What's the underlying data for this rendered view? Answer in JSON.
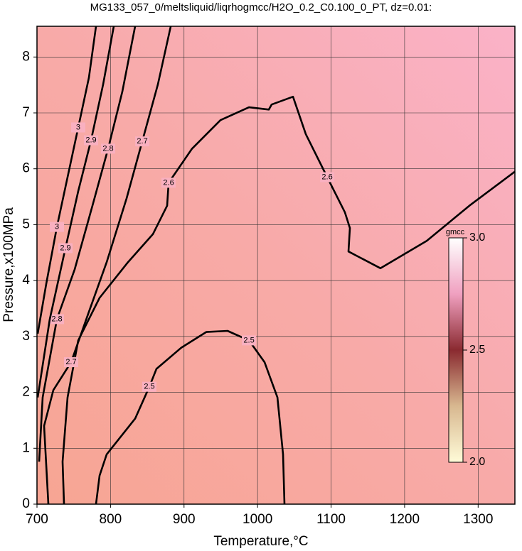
{
  "chart_data": {
    "type": "contour",
    "title": "MG133_057_0/meltsliquid/liqrhogmcc/H2O_0.2_C0.100_0_PT, dz=0.01:",
    "xlabel": "Temperature,°C",
    "ylabel": "Pressure,x100MPa",
    "xlim": [
      700,
      1350
    ],
    "ylim": [
      0,
      8.55
    ],
    "xticks": [
      700,
      800,
      900,
      1000,
      1100,
      1200,
      1300
    ],
    "yticks": [
      0,
      1,
      2,
      3,
      4,
      5,
      6,
      7,
      8
    ],
    "grid": true,
    "color": "#000000",
    "contours": [
      {
        "level": 2.5,
        "x": [
          1036.6,
          1034.7,
          1027,
          1009.5,
          988.3,
          959.2,
          930.2,
          896.4,
          862.5,
          852.8,
          833.5,
          794.8,
          785.1,
          780.3
        ],
        "y": [
          0,
          0.89,
          1.91,
          2.54,
          2.93,
          3.1,
          3.08,
          2.8,
          2.42,
          2.1,
          1.53,
          0.89,
          0.51,
          0
        ]
      },
      {
        "level": 2.6,
        "x": [
          736.8,
          734.8,
          741.6,
          756.1,
          785.1,
          823.8,
          857.7,
          877,
          879,
          910.9,
          949.6,
          988.3,
          1015.3,
          1019.2,
          1048.2,
          1065.6,
          1094.7,
          1118.8,
          1125.6,
          1123.7,
          1167.2,
          1230.1,
          1288.1,
          1350
        ],
        "y": [
          0,
          0.76,
          1.91,
          2.93,
          3.69,
          4.33,
          4.83,
          5.34,
          5.75,
          6.36,
          6.87,
          7.1,
          7.06,
          7.15,
          7.29,
          6.62,
          5.85,
          5.22,
          4.94,
          4.52,
          4.22,
          4.71,
          5.34,
          5.95
        ]
      },
      {
        "level": 2.7,
        "x": [
          715.5,
          709.7,
          722.2,
          746.4,
          770.6,
          794.8,
          821.9,
          843.2,
          864.4,
          881.9
        ],
        "y": [
          0,
          1.4,
          2.04,
          2.54,
          3.44,
          4.33,
          5.47,
          6.49,
          7.51,
          8.55
        ]
      },
      {
        "level": 2.8,
        "x": [
          702.9,
          707.7,
          727.1,
          751.3,
          775.4,
          796.7,
          816.1,
          833.5
        ],
        "y": [
          0.76,
          1.91,
          3.31,
          4.2,
          5.34,
          6.36,
          7.38,
          8.55
        ]
      },
      {
        "level": 2.9,
        "x": [
          701,
          717.4,
          738.7,
          756.1,
          773.5,
          790,
          804.5
        ],
        "y": [
          1.91,
          3.31,
          4.58,
          5.6,
          6.51,
          7.51,
          8.55
        ]
      },
      {
        "level": 3,
        "x": [
          701,
          712.6,
          727.1,
          741.6,
          756.1,
          770.6,
          780.3
        ],
        "y": [
          3.05,
          3.94,
          4.96,
          5.85,
          6.74,
          7.63,
          8.55
        ]
      }
    ],
    "colorbar": {
      "label": "gmcc",
      "clim": [
        2,
        3
      ],
      "ticks": [
        {
          "value": 2,
          "label": "2.0"
        },
        {
          "value": 2.5,
          "label": "2.5"
        },
        {
          "value": 3,
          "label": "3.0"
        }
      ]
    }
  }
}
